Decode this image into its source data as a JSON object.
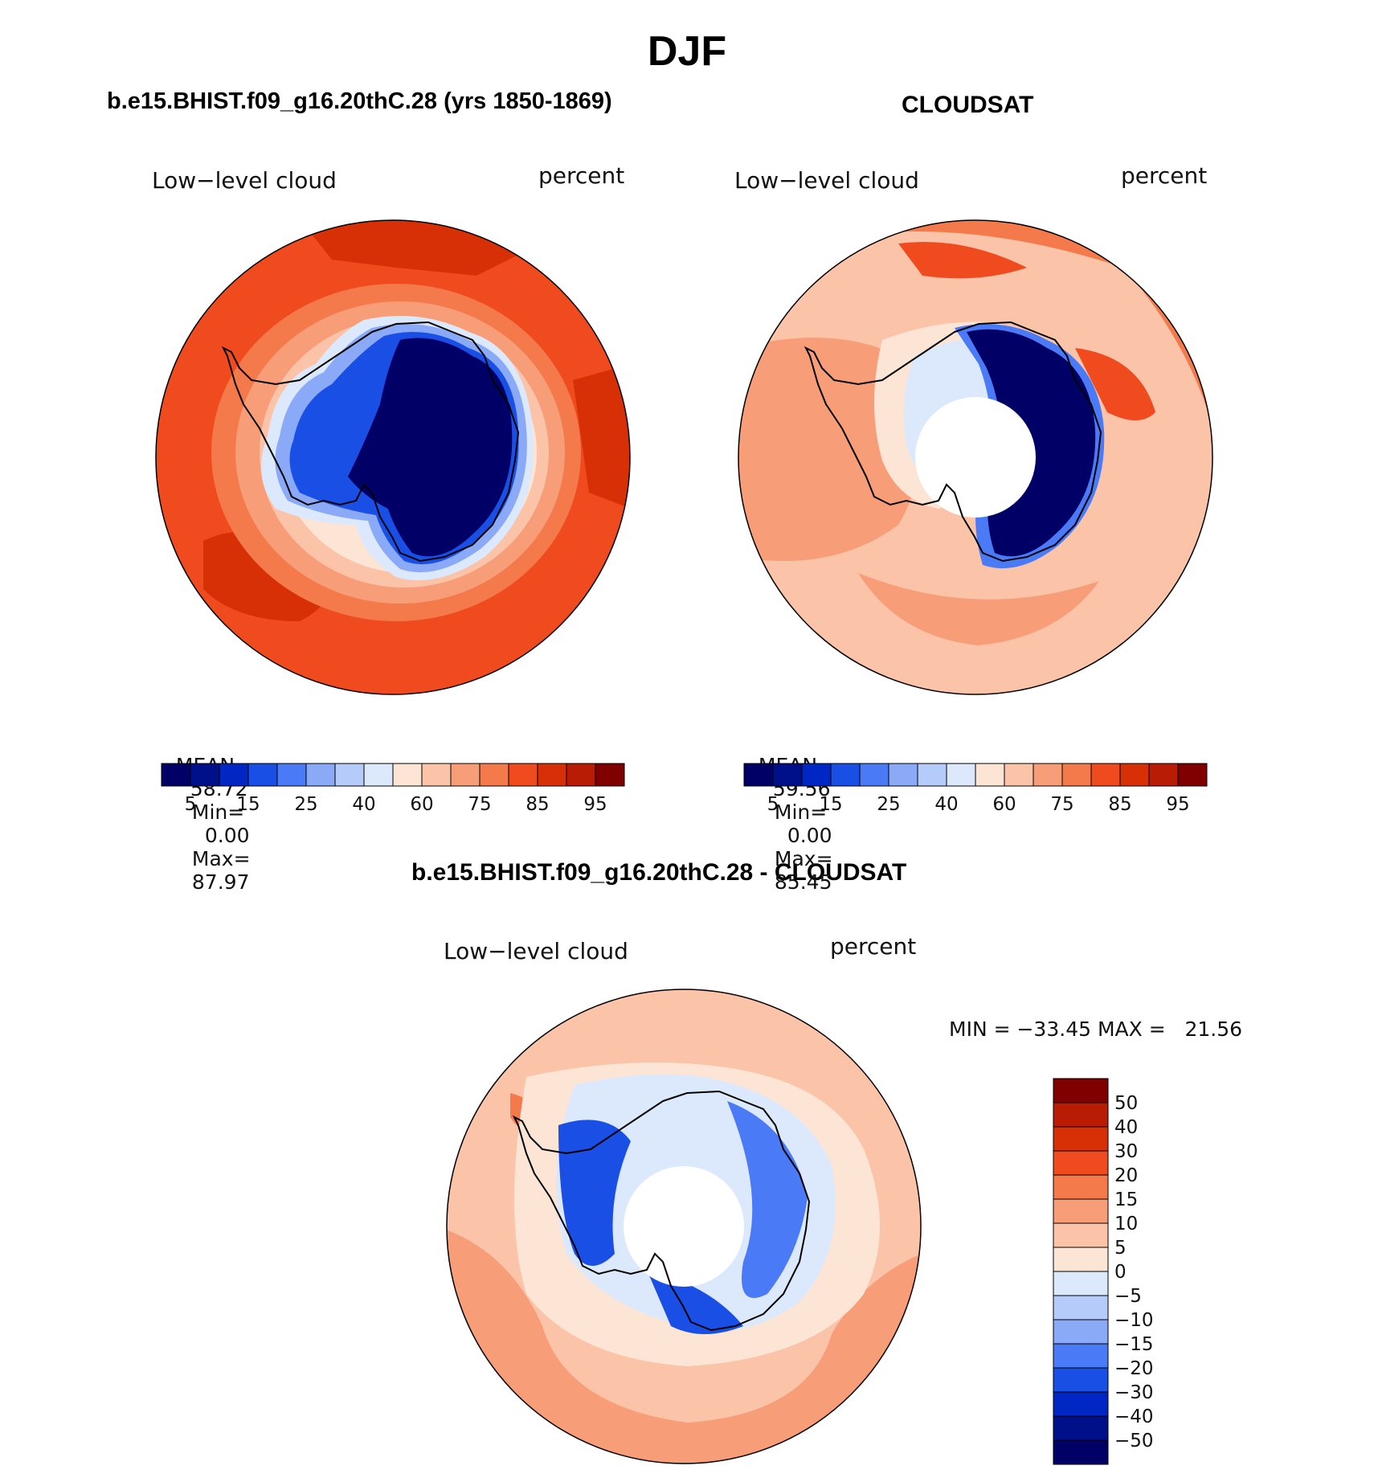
{
  "title": "DJF",
  "colors": {
    "seq": [
      "#000066",
      "#00108a",
      "#0026c4",
      "#1a4fe6",
      "#4a7af5",
      "#8aa9f7",
      "#b5ccfa",
      "#dce9fc",
      "#fde5d6",
      "#fbc3a8",
      "#f79d78",
      "#f47a4c",
      "#f04a1f",
      "#d83006",
      "#b81c04",
      "#800000"
    ],
    "diff": [
      "#000066",
      "#00108a",
      "#0026c4",
      "#1a4fe6",
      "#4a7af5",
      "#8aa9f7",
      "#b5ccfa",
      "#dce9fc",
      "#fde5d6",
      "#fbc3a8",
      "#f79d78",
      "#f47a4c",
      "#f04a1f",
      "#d83006",
      "#b81c04",
      "#800000"
    ]
  },
  "panels": {
    "model": {
      "header": "b.e15.BHIST.f09_g16.20thC.28 (yrs 1850-1869)",
      "variable": "Low−level cloud",
      "units": "percent",
      "stats": {
        "mean_label": "MEAN=",
        "mean": "58.72",
        "min_label": "Min=",
        "min": "0.00",
        "max_label": "Max=",
        "max": "87.97"
      },
      "colorbar_ticks": [
        "5",
        "15",
        "25",
        "40",
        "60",
        "75",
        "85",
        "95"
      ]
    },
    "obs": {
      "header": "CLOUDSAT",
      "variable": "Low−level cloud",
      "units": "percent",
      "stats": {
        "mean_label": "MEAN=",
        "mean": "59.56",
        "min_label": "Min=",
        "min": "0.00",
        "max_label": "Max=",
        "max": "85.45"
      },
      "colorbar_ticks": [
        "5",
        "15",
        "25",
        "40",
        "60",
        "75",
        "85",
        "95"
      ]
    },
    "diff": {
      "header": "b.e15.BHIST.f09_g16.20thC.28 - CLOUDSAT",
      "variable": "Low−level cloud",
      "units": "percent",
      "minmax": "MIN = −33.45 MAX =   21.56",
      "colorbar_ticks": [
        "50",
        "40",
        "30",
        "20",
        "15",
        "10",
        "5",
        "0",
        "−5",
        "−10",
        "−15",
        "−20",
        "−30",
        "−40",
        "−50"
      ]
    }
  }
}
